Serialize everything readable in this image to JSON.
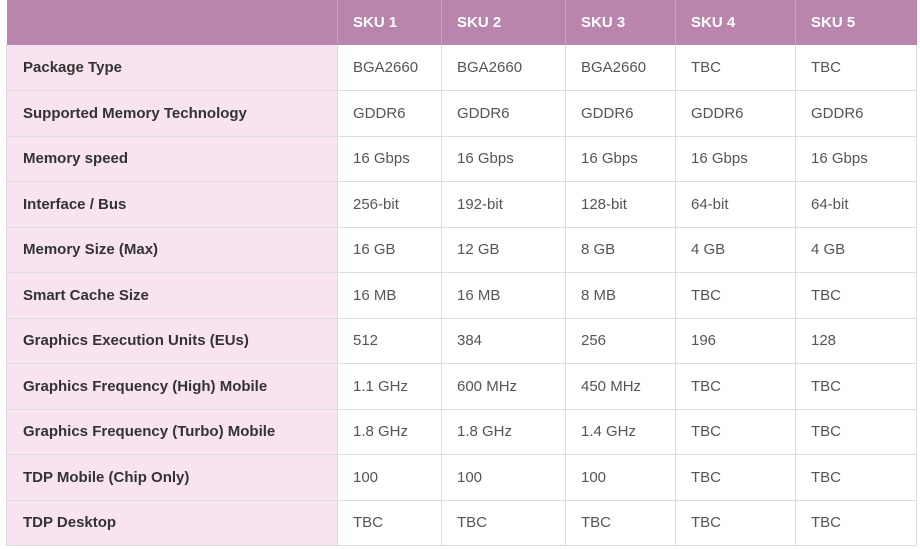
{
  "table": {
    "columns": [
      "",
      "SKU 1",
      "SKU 2",
      "SKU 3",
      "SKU 4",
      "SKU 5"
    ],
    "rows": [
      {
        "label": "Package Type",
        "values": [
          "BGA2660",
          "BGA2660",
          "BGA2660",
          "TBC",
          "TBC"
        ]
      },
      {
        "label": "Supported Memory Technology",
        "values": [
          "GDDR6",
          "GDDR6",
          "GDDR6",
          "GDDR6",
          "GDDR6"
        ]
      },
      {
        "label": "Memory speed",
        "values": [
          "16 Gbps",
          "16 Gbps",
          "16 Gbps",
          "16 Gbps",
          "16 Gbps"
        ]
      },
      {
        "label": "Interface / Bus",
        "values": [
          "256-bit",
          "192-bit",
          "128-bit",
          "64-bit",
          "64-bit"
        ]
      },
      {
        "label": "Memory Size (Max)",
        "values": [
          "16 GB",
          "12 GB",
          "8 GB",
          "4 GB",
          "4 GB"
        ]
      },
      {
        "label": "Smart Cache Size",
        "values": [
          "16 MB",
          "16 MB",
          "8 MB",
          "TBC",
          "TBC"
        ]
      },
      {
        "label": "Graphics Execution Units (EUs)",
        "values": [
          "512",
          "384",
          "256",
          "196",
          "128"
        ]
      },
      {
        "label": "Graphics Frequency (High) Mobile",
        "values": [
          "1.1 GHz",
          "600 MHz",
          "450 MHz",
          "TBC",
          "TBC"
        ]
      },
      {
        "label": "Graphics Frequency (Turbo) Mobile",
        "values": [
          "1.8 GHz",
          "1.8 GHz",
          "1.4 GHz",
          "TBC",
          "TBC"
        ]
      },
      {
        "label": "TDP Mobile (Chip Only)",
        "values": [
          "100",
          "100",
          "100",
          "TBC",
          "TBC"
        ]
      },
      {
        "label": "TDP Desktop",
        "values": [
          "TBC",
          "TBC",
          "TBC",
          "TBC",
          "TBC"
        ]
      }
    ]
  },
  "colors": {
    "header_bg": "#b985ad",
    "label_bg": "#f7e4f0"
  }
}
